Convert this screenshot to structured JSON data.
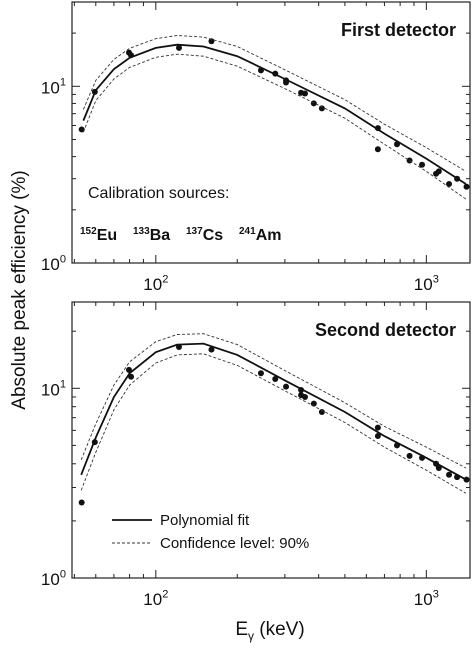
{
  "y_label": "Absolute peak efficiency (%)",
  "x_label": {
    "base": "E",
    "subscript": "γ",
    "unit": " (keV)"
  },
  "chart_data": [
    {
      "type": "line",
      "log_x": true,
      "log_y": true,
      "title": "First detector",
      "annotation": "Calibration sources:",
      "sources": [
        {
          "mass": "152",
          "symbol": "Eu"
        },
        {
          "mass": "133",
          "symbol": "Ba"
        },
        {
          "mass": "137",
          "symbol": "Cs"
        },
        {
          "mass": "241",
          "symbol": "Am"
        }
      ],
      "xlim": [
        49,
        1450
      ],
      "ylim": [
        1,
        30
      ],
      "xticks": [
        {
          "value": 100,
          "label": "10",
          "exponent": "2"
        },
        {
          "value": 1000,
          "label": "10",
          "exponent": "3"
        }
      ],
      "yticks": [
        {
          "value": 1,
          "label": "10",
          "exponent": "0"
        },
        {
          "value": 10,
          "label": "10",
          "exponent": "1"
        }
      ],
      "xminorticks": [
        50,
        60,
        70,
        80,
        90,
        200,
        300,
        400,
        500,
        600,
        700,
        800,
        900
      ],
      "yminorticks": [
        2,
        3,
        4,
        5,
        6,
        7,
        8,
        9,
        20
      ],
      "series": [
        {
          "style": "points",
          "color": "#111",
          "x": [
            53.2,
            59.5,
            79.6,
            81,
            121.8,
            160.6,
            244.7,
            276.4,
            302.9,
            302.9,
            344.3,
            356,
            383.8,
            411,
            662,
            662,
            779,
            867,
            964,
            1086,
            1112,
            1213,
            1299,
            1408
          ],
          "values": [
            5.7,
            9.3,
            15.5,
            15,
            16.5,
            18,
            12.3,
            11.8,
            10.5,
            10.8,
            9.2,
            9.1,
            8,
            7.5,
            5.8,
            4.4,
            4.7,
            3.8,
            3.6,
            3.2,
            3.3,
            2.8,
            3,
            2.7
          ]
        },
        {
          "style": "solid",
          "color": "#111",
          "x": [
            54,
            60,
            70,
            80,
            100,
            120,
            150,
            200,
            300,
            500,
            700,
            1000,
            1400
          ],
          "values": [
            6.4,
            9.5,
            12.5,
            14.5,
            16.5,
            17.2,
            16.8,
            14.8,
            11,
            7.5,
            5.4,
            3.9,
            2.8
          ]
        },
        {
          "style": "dashed",
          "color": "#333",
          "x": [
            54,
            60,
            70,
            80,
            100,
            120,
            150,
            200,
            300,
            500,
            700,
            1000,
            1400
          ],
          "values": [
            7.4,
            10.8,
            14.2,
            16.4,
            18.6,
            19.4,
            19,
            16.8,
            12.4,
            8.4,
            6.1,
            4.5,
            3.3
          ]
        },
        {
          "style": "dashed",
          "color": "#333",
          "x": [
            54,
            60,
            70,
            80,
            100,
            120,
            150,
            200,
            300,
            500,
            700,
            1000,
            1400
          ],
          "values": [
            5.5,
            8.3,
            11,
            12.8,
            14.6,
            15.2,
            14.8,
            13,
            9.7,
            6.6,
            4.7,
            3.3,
            2.3
          ]
        }
      ]
    },
    {
      "type": "line",
      "log_x": true,
      "log_y": true,
      "title": "Second detector",
      "xlim": [
        49,
        1450
      ],
      "ylim": [
        1,
        28.5
      ],
      "xticks": [
        {
          "value": 100,
          "label": "10",
          "exponent": "2"
        },
        {
          "value": 1000,
          "label": "10",
          "exponent": "3"
        }
      ],
      "yticks": [
        {
          "value": 1,
          "label": "10",
          "exponent": "0"
        },
        {
          "value": 10,
          "label": "10",
          "exponent": "1"
        }
      ],
      "xminorticks": [
        50,
        60,
        70,
        80,
        90,
        200,
        300,
        400,
        500,
        600,
        700,
        800,
        900
      ],
      "yminorticks": [
        2,
        3,
        4,
        5,
        6,
        7,
        8,
        9,
        20
      ],
      "series": [
        {
          "style": "points",
          "color": "#111",
          "x": [
            53.2,
            59.5,
            79.6,
            81,
            121.8,
            160.6,
            244.7,
            276.4,
            302.9,
            344.3,
            344.3,
            356,
            383.8,
            411,
            662,
            662,
            779,
            867,
            964,
            1086,
            1112,
            1213,
            1299,
            1408
          ],
          "values": [
            2.5,
            5.2,
            12.5,
            11.5,
            16.5,
            16,
            12,
            11.2,
            10.2,
            9.8,
            9.2,
            9,
            8.3,
            7.5,
            6.2,
            5.6,
            5,
            4.4,
            4.3,
            4,
            3.8,
            3.5,
            3.4,
            3.3
          ]
        },
        {
          "name": "Polynomial fit",
          "style": "solid",
          "color": "#111",
          "x": [
            53,
            60,
            70,
            80,
            100,
            120,
            150,
            200,
            300,
            500,
            700,
            1000,
            1400
          ],
          "values": [
            3.5,
            5.5,
            9,
            12,
            15.5,
            17,
            17.2,
            15,
            11,
            7.5,
            5.6,
            4.3,
            3.3
          ]
        },
        {
          "name": "Confidence level: 90%",
          "style": "dashed",
          "color": "#333",
          "x": [
            53,
            60,
            70,
            80,
            100,
            120,
            150,
            200,
            300,
            500,
            700,
            1000,
            1400
          ],
          "values": [
            4.2,
            6.5,
            10.4,
            13.8,
            17.6,
            19.2,
            19.4,
            17,
            12.4,
            8.4,
            6.3,
            4.9,
            3.8
          ]
        },
        {
          "style": "dashed",
          "color": "#333",
          "x": [
            53,
            60,
            70,
            80,
            100,
            120,
            150,
            200,
            300,
            500,
            700,
            1000,
            1400
          ],
          "values": [
            2.9,
            4.6,
            7.7,
            10.4,
            13.6,
            15,
            15.2,
            13.2,
            9.7,
            6.6,
            4.9,
            3.7,
            2.8
          ]
        }
      ]
    }
  ]
}
